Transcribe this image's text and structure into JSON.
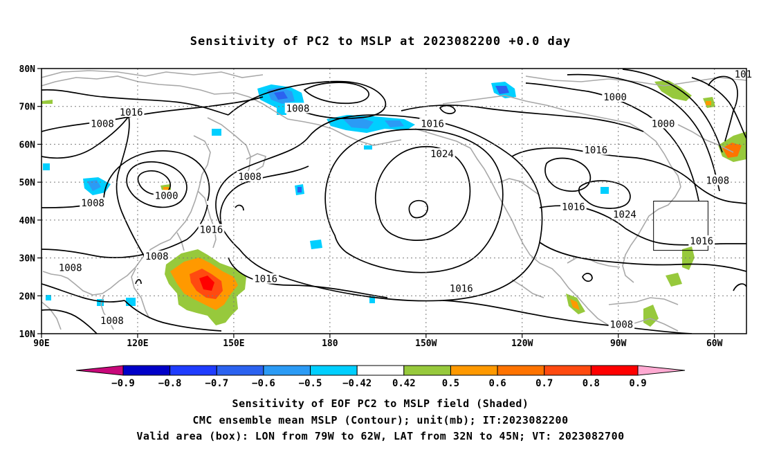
{
  "title": "Sensitivity of PC2 to MSLP at 2023082200 +0.0 day",
  "map": {
    "lat_ticks": [
      "80N",
      "70N",
      "60N",
      "50N",
      "40N",
      "30N",
      "20N",
      "10N"
    ],
    "lon_ticks": [
      "90E",
      "120E",
      "150E",
      "180",
      "150W",
      "120W",
      "90W",
      "60W"
    ],
    "lon_range": [
      "90E",
      "50W"
    ],
    "lat_range": [
      "10N",
      "80N"
    ],
    "grid": true,
    "contour_color": "#000000",
    "coast_color": "#a8a8a8",
    "contour_labels": [
      {
        "text": "1016",
        "lon": 118,
        "lat": 68.5
      },
      {
        "text": "1008",
        "lon": 109,
        "lat": 65.5
      },
      {
        "text": "1008",
        "lon": 170,
        "lat": 69.5
      },
      {
        "text": "1016",
        "lon": -148,
        "lat": 65.5
      },
      {
        "text": "1000",
        "lon": -91,
        "lat": 72.5
      },
      {
        "text": "1000",
        "lon": -76,
        "lat": 65.5
      },
      {
        "text": "1024",
        "lon": -145,
        "lat": 57.5
      },
      {
        "text": "1016",
        "lon": -97,
        "lat": 58.5
      },
      {
        "text": "1008",
        "lon": 155,
        "lat": 51.5
      },
      {
        "text": "1008",
        "lon": -59,
        "lat": 50.5
      },
      {
        "text": "1000",
        "lon": 129,
        "lat": 46.5
      },
      {
        "text": "1008",
        "lon": 106,
        "lat": 44.5
      },
      {
        "text": "1016",
        "lon": -104,
        "lat": 43.5
      },
      {
        "text": "1024",
        "lon": -88,
        "lat": 41.5
      },
      {
        "text": "1016",
        "lon": 143,
        "lat": 37.5
      },
      {
        "text": "1016",
        "lon": -64,
        "lat": 34.5
      },
      {
        "text": "1008",
        "lon": 126,
        "lat": 30.5
      },
      {
        "text": "1008",
        "lon": 99,
        "lat": 27.5
      },
      {
        "text": "1016",
        "lon": 160,
        "lat": 24.5
      },
      {
        "text": "1016",
        "lon": -139,
        "lat": 22.0
      },
      {
        "text": "1008",
        "lon": 112,
        "lat": 13.5
      },
      {
        "text": "1008",
        "lon": -89,
        "lat": 12.5
      },
      {
        "text": "101",
        "lon": -51,
        "lat": 78.5
      }
    ],
    "valid_box": {
      "lon_min": -79,
      "lon_max": -62,
      "lat_min": 32,
      "lat_max": 45
    }
  },
  "colorbar": {
    "labels": [
      "−0.9",
      "−0.8",
      "−0.7",
      "−0.6",
      "−0.5",
      "−0.42",
      "0.42",
      "0.5",
      "0.6",
      "0.7",
      "0.8",
      "0.9"
    ],
    "colors": [
      "#0000c8",
      "#1f3cff",
      "#2b62f0",
      "#2b9bf5",
      "#00cfff",
      "#ffffff",
      "#97c93c",
      "#ff9900",
      "#ff7300",
      "#ff4a10",
      "#ff0000"
    ],
    "under_color": "#c8087a",
    "over_color": "#ffaad2"
  },
  "captions": [
    "Sensitivity of EOF PC2 to MSLP field (Shaded)",
    "CMC ensemble mean MSLP (Contour); unit(mb); IT:2023082200",
    "Valid area (box): LON from 79W to 62W, LAT from 32N to 45N; VT: 2023082700"
  ]
}
